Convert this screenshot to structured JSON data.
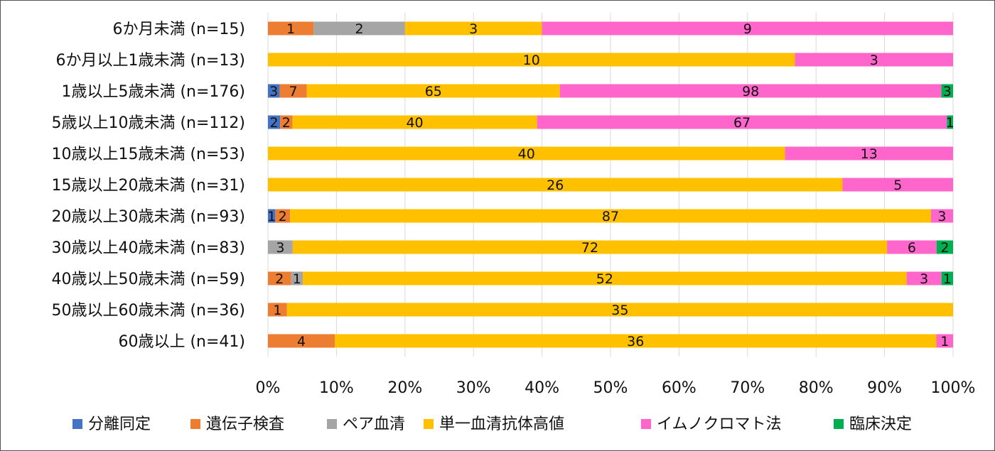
{
  "chart_data": {
    "type": "bar",
    "orientation": "horizontal",
    "stacked": "percent",
    "categories": [
      "6か月未満 (n=15)",
      "6か月以上1歳未満 (n=13)",
      "1歳以上5歳未満 (n=176)",
      "5歳以上10歳未満 (n=112)",
      "10歳以上15歳未満 (n=53)",
      "15歳以上20歳未満 (n=31)",
      "20歳以上30歳未満 (n=93)",
      "30歳以上40歳未満 (n=83)",
      "40歳以上50歳未満 (n=59)",
      "50歳以上60歳未満 (n=36)",
      "60歳以上 (n=41)"
    ],
    "series": [
      {
        "name": "分離同定",
        "color": "#4472C4",
        "values": [
          0,
          0,
          3,
          2,
          0,
          0,
          1,
          0,
          0,
          0,
          0
        ]
      },
      {
        "name": "遺伝子検査",
        "color": "#ED7D31",
        "values": [
          1,
          0,
          7,
          2,
          0,
          0,
          2,
          0,
          2,
          1,
          4
        ]
      },
      {
        "name": "ペア血清",
        "color": "#A5A5A5",
        "values": [
          2,
          0,
          0,
          0,
          0,
          0,
          0,
          3,
          1,
          0,
          0
        ]
      },
      {
        "name": "単一血清抗体高値",
        "color": "#FFC000",
        "values": [
          3,
          10,
          65,
          40,
          40,
          26,
          87,
          72,
          52,
          35,
          36
        ]
      },
      {
        "name": "イムノクロマト法",
        "color": "#FF66CC",
        "values": [
          9,
          3,
          98,
          67,
          13,
          5,
          3,
          6,
          3,
          0,
          1
        ]
      },
      {
        "name": "臨床決定",
        "color": "#00B050",
        "values": [
          0,
          0,
          3,
          1,
          0,
          0,
          0,
          2,
          1,
          0,
          0
        ]
      }
    ],
    "xticks": [
      "0%",
      "10%",
      "20%",
      "30%",
      "40%",
      "50%",
      "60%",
      "70%",
      "80%",
      "90%",
      "100%"
    ],
    "xlim": [
      0,
      100
    ],
    "grid": "vertical",
    "legend": "bottom",
    "data_labels": true
  }
}
